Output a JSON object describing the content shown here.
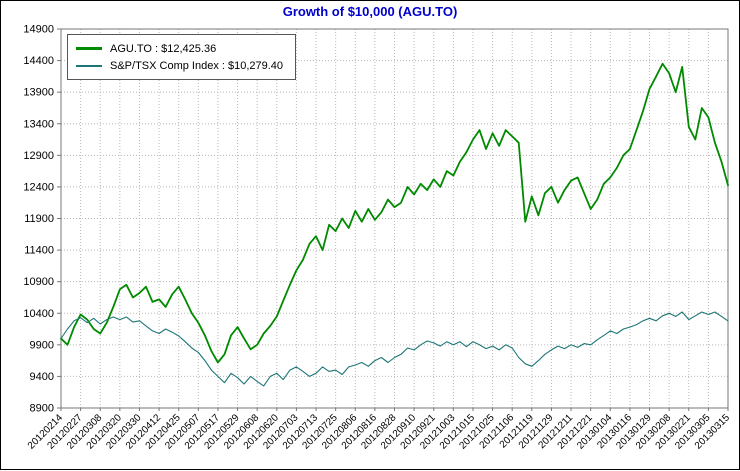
{
  "title": "Growth of $10,000 (AGU.TO)",
  "colors": {
    "title": "#0000cc",
    "agu_line": "#008a00",
    "tsx_line": "#1d7676",
    "grid": "#b8b8b8",
    "frame": "#777777",
    "text": "#000000",
    "background": "#ffffff"
  },
  "legend": {
    "items": [
      {
        "label": "AGU.TO : $12,425.36",
        "color": "#008a00"
      },
      {
        "label": "S&P/TSX Comp Index : $10,279.40",
        "color": "#1d7676"
      }
    ]
  },
  "chart_data": {
    "type": "line",
    "title": "Growth of $10,000 (AGU.TO)",
    "ylim": [
      8900,
      14900
    ],
    "yticks": [
      8900,
      9400,
      9900,
      10400,
      10900,
      11400,
      11900,
      12400,
      12900,
      13400,
      13900,
      14400,
      14900
    ],
    "grid": true,
    "legend_position": "top-left",
    "points_per_label_interval": 3,
    "x_labels": [
      "20120214",
      "20120227",
      "20120308",
      "20120320",
      "20120330",
      "20120412",
      "20120425",
      "20120507",
      "20120517",
      "20120529",
      "20120608",
      "20120620",
      "20120703",
      "20120713",
      "20120725",
      "20120806",
      "20120816",
      "20120828",
      "20120910",
      "20120921",
      "20121003",
      "20121015",
      "20121025",
      "20121106",
      "20121119",
      "20121129",
      "20121211",
      "20121221",
      "20130104",
      "20130116",
      "20130129",
      "20130208",
      "20130221",
      "20130305",
      "20130315"
    ],
    "series": [
      {
        "name": "AGU.TO",
        "final_value": 12425.36,
        "color": "#008a00",
        "values": [
          10000,
          9900,
          10180,
          10380,
          10300,
          10150,
          10080,
          10250,
          10500,
          10780,
          10850,
          10650,
          10720,
          10820,
          10580,
          10620,
          10500,
          10700,
          10820,
          10620,
          10400,
          10250,
          10050,
          9800,
          9620,
          9750,
          10050,
          10180,
          10000,
          9830,
          9900,
          10080,
          10200,
          10350,
          10600,
          10850,
          11080,
          11250,
          11500,
          11620,
          11400,
          11800,
          11700,
          11900,
          11750,
          12020,
          11850,
          12050,
          11880,
          12000,
          12200,
          12080,
          12150,
          12400,
          12280,
          12450,
          12350,
          12520,
          12400,
          12650,
          12580,
          12800,
          12950,
          13150,
          13300,
          13000,
          13250,
          13050,
          13300,
          13200,
          13100,
          11850,
          12250,
          11950,
          12300,
          12400,
          12150,
          12350,
          12500,
          12550,
          12300,
          12050,
          12200,
          12450,
          12550,
          12700,
          12900,
          13000,
          13300,
          13600,
          13950,
          14150,
          14350,
          14200,
          13900,
          14300,
          13350,
          13150,
          13650,
          13500,
          13100,
          12800,
          12425
        ]
      },
      {
        "name": "S&P/TSX Comp Index",
        "final_value": 10279.4,
        "color": "#1d7676",
        "values": [
          10000,
          10150,
          10280,
          10330,
          10250,
          10320,
          10230,
          10300,
          10340,
          10300,
          10340,
          10260,
          10280,
          10200,
          10120,
          10080,
          10150,
          10100,
          10040,
          9950,
          9850,
          9780,
          9650,
          9500,
          9400,
          9300,
          9450,
          9380,
          9280,
          9400,
          9320,
          9250,
          9400,
          9450,
          9350,
          9500,
          9550,
          9480,
          9400,
          9450,
          9550,
          9480,
          9500,
          9430,
          9550,
          9580,
          9620,
          9560,
          9650,
          9700,
          9620,
          9700,
          9750,
          9850,
          9820,
          9900,
          9960,
          9930,
          9880,
          9950,
          9900,
          9950,
          9870,
          9950,
          9900,
          9840,
          9880,
          9820,
          9900,
          9850,
          9700,
          9600,
          9560,
          9650,
          9750,
          9820,
          9880,
          9840,
          9900,
          9860,
          9920,
          9900,
          9980,
          10050,
          10120,
          10080,
          10150,
          10180,
          10220,
          10280,
          10320,
          10280,
          10360,
          10400,
          10350,
          10420,
          10300,
          10360,
          10420,
          10380,
          10420,
          10350,
          10279
        ]
      }
    ]
  }
}
